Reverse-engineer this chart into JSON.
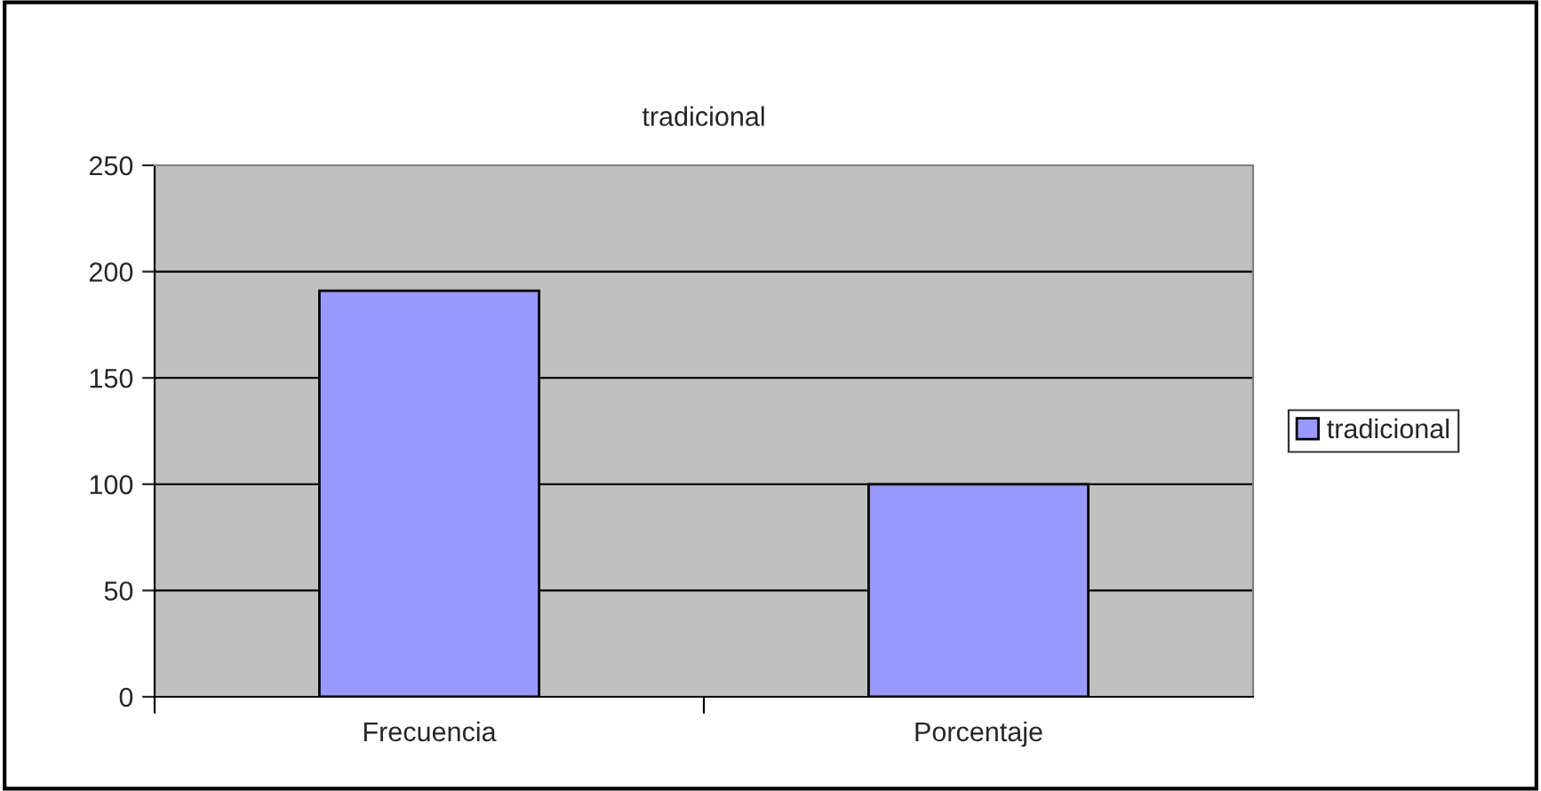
{
  "chart_data": {
    "type": "bar",
    "title": "tradicional",
    "categories": [
      "Frecuencia",
      "Porcentaje"
    ],
    "series": [
      {
        "name": "tradicional",
        "color": "#9999ff",
        "values": [
          191,
          100
        ]
      }
    ],
    "ylim": [
      0,
      250
    ],
    "yticks": [
      0,
      50,
      100,
      150,
      200,
      250
    ],
    "grid": "y",
    "legend": "right"
  }
}
